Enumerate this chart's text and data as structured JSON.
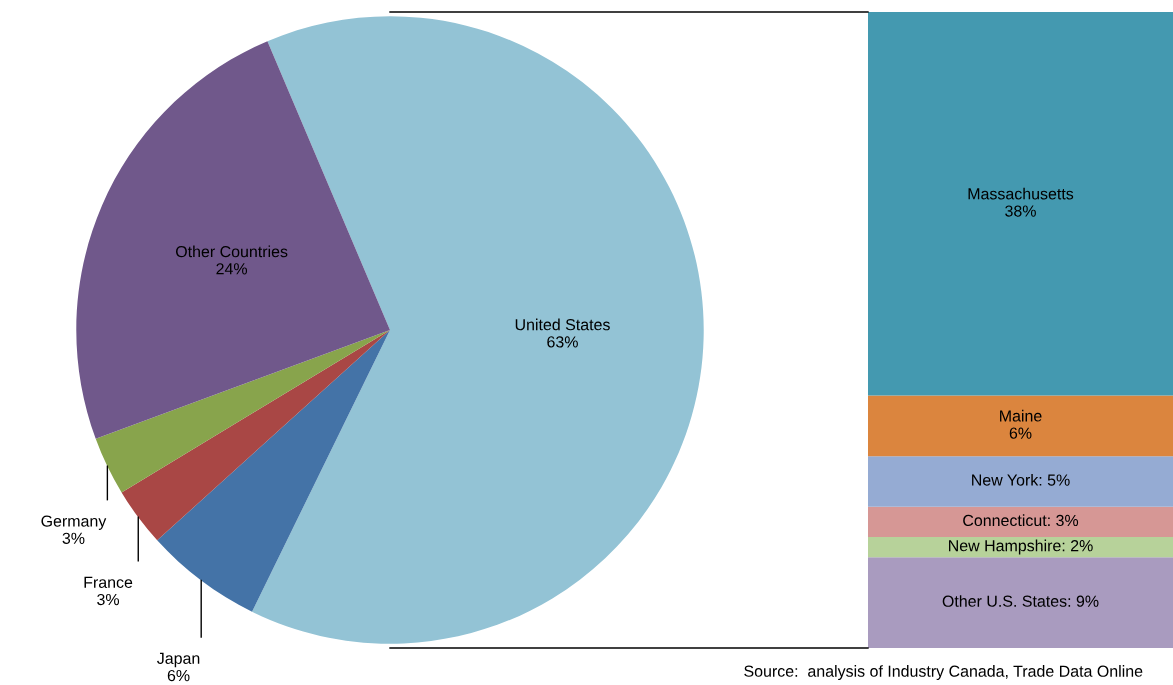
{
  "chart_data": [
    {
      "type": "pie",
      "categories": [
        "United States",
        "Japan",
        "France",
        "Germany",
        "Other Countries"
      ],
      "values": [
        63,
        6,
        3,
        3,
        24
      ],
      "value_labels": [
        "63%",
        "6%",
        "3%",
        "3%",
        "24%"
      ],
      "colors": [
        "#93c3d5",
        "#4473a7",
        "#a94745",
        "#88a44c",
        "#70588b"
      ],
      "annotations": [
        "Source:  analysis of Industry Canada, Trade Data Online"
      ]
    },
    {
      "type": "bar",
      "stacked": true,
      "categories": [
        null
      ],
      "series": [
        {
          "color": "#a99bbf",
          "values": [
            9
          ],
          "value_labels": [
            "Other U.S. States: 9%"
          ]
        },
        {
          "color": "#b7d29a",
          "values": [
            2
          ],
          "value_labels": [
            "New Hampshire: 2%"
          ]
        },
        {
          "color": "#d69795",
          "values": [
            3
          ],
          "value_labels": [
            "Connecticut: 3%"
          ]
        },
        {
          "color": "#95abd3",
          "values": [
            5
          ],
          "value_labels": [
            "New York: 5%"
          ]
        },
        {
          "color": "#db853e",
          "values": [
            6
          ],
          "value_labels": [
            "Maine\n6%"
          ]
        },
        {
          "color": "#4499b0",
          "values": [
            38
          ],
          "value_labels": [
            "Massachusetts\n38%"
          ]
        }
      ]
    }
  ]
}
